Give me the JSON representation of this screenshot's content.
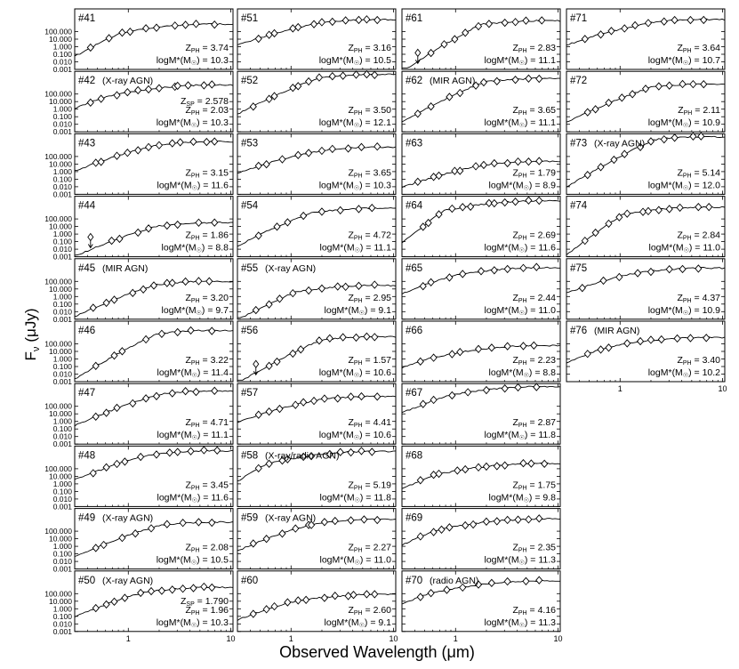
{
  "figure": {
    "ylabel": "F",
    "ylabel_sub": "ν",
    "ylabel_unit": "(μJy)",
    "xlabel": "Observed Wavelength (μm)"
  },
  "chart_data": {
    "type": "scatter",
    "description": "Grid of per-source SED fits: model spectrum (line) with photometry (diamonds) and upper limits (arrows), log-scaled axes.",
    "x_scale": "log",
    "y_scale": "log",
    "xlim": [
      0.3,
      10.5
    ],
    "ylim": [
      0.001,
      100000
    ],
    "x_ticks": [
      {
        "value": 1,
        "label": "1"
      },
      {
        "value": 10,
        "label": "10"
      }
    ],
    "y_ticks": [
      {
        "value": 0.001,
        "label": "0.001"
      },
      {
        "value": 0.01,
        "label": "0.010"
      },
      {
        "value": 0.1,
        "label": "0.100"
      },
      {
        "value": 1,
        "label": "1.000"
      },
      {
        "value": 10,
        "label": "10.000"
      },
      {
        "value": 100,
        "label": "100.000"
      }
    ],
    "panels": [
      {
        "id": "#41",
        "col": 0,
        "row": 0,
        "tag": "",
        "z_sp": "",
        "z_ph": "3.74",
        "logm": "10.3"
      },
      {
        "id": "#42",
        "col": 0,
        "row": 1,
        "tag": "(X-ray AGN)",
        "z_sp": "2.578",
        "z_ph": "2.03",
        "logm": "10.3"
      },
      {
        "id": "#43",
        "col": 0,
        "row": 2,
        "tag": "",
        "z_sp": "",
        "z_ph": "3.15",
        "logm": "11.6"
      },
      {
        "id": "#44",
        "col": 0,
        "row": 3,
        "tag": "",
        "z_sp": "",
        "z_ph": "1.86",
        "logm": "8.8"
      },
      {
        "id": "#45",
        "col": 0,
        "row": 4,
        "tag": "(MIR AGN)",
        "z_sp": "",
        "z_ph": "3.20",
        "logm": "9.7"
      },
      {
        "id": "#46",
        "col": 0,
        "row": 5,
        "tag": "",
        "z_sp": "",
        "z_ph": "3.22",
        "logm": "11.4"
      },
      {
        "id": "#47",
        "col": 0,
        "row": 6,
        "tag": "",
        "z_sp": "",
        "z_ph": "4.71",
        "logm": "11.1"
      },
      {
        "id": "#48",
        "col": 0,
        "row": 7,
        "tag": "",
        "z_sp": "",
        "z_ph": "3.45",
        "logm": "11.6"
      },
      {
        "id": "#49",
        "col": 0,
        "row": 8,
        "tag": "(X-ray AGN)",
        "z_sp": "",
        "z_ph": "2.08",
        "logm": "10.5"
      },
      {
        "id": "#50",
        "col": 0,
        "row": 9,
        "tag": "(X-ray AGN)",
        "z_sp": "1.790",
        "z_ph": "1.96",
        "logm": "10.3"
      },
      {
        "id": "#51",
        "col": 1,
        "row": 0,
        "tag": "",
        "z_sp": "",
        "z_ph": "3.16",
        "logm": "10.5"
      },
      {
        "id": "#52",
        "col": 1,
        "row": 1,
        "tag": "",
        "z_sp": "",
        "z_ph": "3.50",
        "logm": "12.1"
      },
      {
        "id": "#53",
        "col": 1,
        "row": 2,
        "tag": "",
        "z_sp": "",
        "z_ph": "3.65",
        "logm": "10.3"
      },
      {
        "id": "#54",
        "col": 1,
        "row": 3,
        "tag": "",
        "z_sp": "",
        "z_ph": "4.72",
        "logm": "11.1"
      },
      {
        "id": "#55",
        "col": 1,
        "row": 4,
        "tag": "(X-ray AGN)",
        "z_sp": "",
        "z_ph": "2.95",
        "logm": "9.1"
      },
      {
        "id": "#56",
        "col": 1,
        "row": 5,
        "tag": "",
        "z_sp": "",
        "z_ph": "1.57",
        "logm": "10.6"
      },
      {
        "id": "#57",
        "col": 1,
        "row": 6,
        "tag": "",
        "z_sp": "",
        "z_ph": "4.41",
        "logm": "10.6"
      },
      {
        "id": "#58",
        "col": 1,
        "row": 7,
        "tag": "(X-ray/radio AGN)",
        "z_sp": "",
        "z_ph": "5.19",
        "logm": "11.8"
      },
      {
        "id": "#59",
        "col": 1,
        "row": 8,
        "tag": "(X-ray AGN)",
        "z_sp": "",
        "z_ph": "2.27",
        "logm": "11.0"
      },
      {
        "id": "#60",
        "col": 1,
        "row": 9,
        "tag": "",
        "z_sp": "",
        "z_ph": "2.60",
        "logm": "9.1"
      },
      {
        "id": "#61",
        "col": 2,
        "row": 0,
        "tag": "",
        "z_sp": "",
        "z_ph": "2.83",
        "logm": "11.1"
      },
      {
        "id": "#62",
        "col": 2,
        "row": 1,
        "tag": "(MIR AGN)",
        "z_sp": "",
        "z_ph": "3.65",
        "logm": "11.1"
      },
      {
        "id": "#63",
        "col": 2,
        "row": 2,
        "tag": "",
        "z_sp": "",
        "z_ph": "1.79",
        "logm": "8.9"
      },
      {
        "id": "#64",
        "col": 2,
        "row": 3,
        "tag": "",
        "z_sp": "",
        "z_ph": "2.69",
        "logm": "11.6"
      },
      {
        "id": "#65",
        "col": 2,
        "row": 4,
        "tag": "",
        "z_sp": "",
        "z_ph": "2.44",
        "logm": "11.0"
      },
      {
        "id": "#66",
        "col": 2,
        "row": 5,
        "tag": "",
        "z_sp": "",
        "z_ph": "2.23",
        "logm": "8.8"
      },
      {
        "id": "#67",
        "col": 2,
        "row": 6,
        "tag": "",
        "z_sp": "",
        "z_ph": "2.87",
        "logm": "11.8"
      },
      {
        "id": "#68",
        "col": 2,
        "row": 7,
        "tag": "",
        "z_sp": "",
        "z_ph": "1.75",
        "logm": "9.8"
      },
      {
        "id": "#69",
        "col": 2,
        "row": 8,
        "tag": "",
        "z_sp": "",
        "z_ph": "2.35",
        "logm": "11.3"
      },
      {
        "id": "#70",
        "col": 2,
        "row": 9,
        "tag": "(radio AGN)",
        "z_sp": "",
        "z_ph": "4.16",
        "logm": "11.3"
      },
      {
        "id": "#71",
        "col": 3,
        "row": 0,
        "tag": "",
        "z_sp": "",
        "z_ph": "3.64",
        "logm": "10.7"
      },
      {
        "id": "#72",
        "col": 3,
        "row": 1,
        "tag": "",
        "z_sp": "",
        "z_ph": "2.11",
        "logm": "10.9"
      },
      {
        "id": "#73",
        "col": 3,
        "row": 2,
        "tag": "(X-ray AGN)",
        "z_sp": "",
        "z_ph": "5.14",
        "logm": "12.0"
      },
      {
        "id": "#74",
        "col": 3,
        "row": 3,
        "tag": "",
        "z_sp": "",
        "z_ph": "2.84",
        "logm": "11.0"
      },
      {
        "id": "#75",
        "col": 3,
        "row": 4,
        "tag": "",
        "z_sp": "",
        "z_ph": "4.37",
        "logm": "10.9"
      },
      {
        "id": "#76",
        "col": 3,
        "row": 5,
        "tag": "(MIR AGN)",
        "z_sp": "",
        "z_ph": "3.40",
        "logm": "10.2"
      }
    ]
  }
}
